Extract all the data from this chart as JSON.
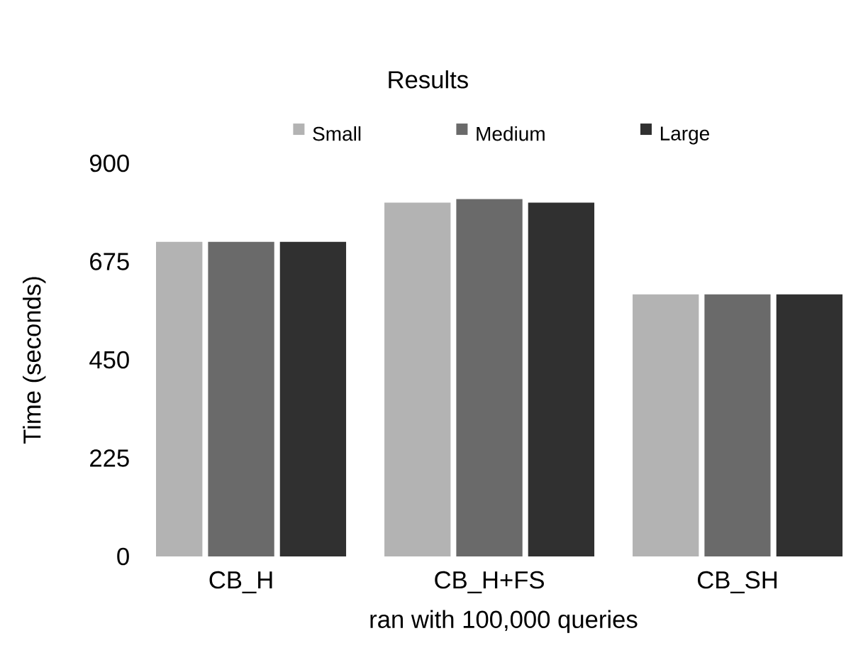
{
  "chart_data": {
    "type": "bar",
    "title": "Results",
    "xlabel": "ran with 100,000 queries",
    "ylabel": "Time (seconds)",
    "categories": [
      "CB_H",
      "CB_H+FS",
      "CB_SH"
    ],
    "series": [
      {
        "name": "Small",
        "color": "#b3b3b3",
        "values": [
          720,
          810,
          600
        ]
      },
      {
        "name": "Medium",
        "color": "#6a6a6a",
        "values": [
          720,
          818,
          600
        ]
      },
      {
        "name": "Large",
        "color": "#303030",
        "values": [
          720,
          810,
          600
        ]
      }
    ],
    "ylim": [
      0,
      900
    ],
    "yticks": [
      0,
      225,
      450,
      675,
      900
    ],
    "grid": false,
    "legend": "top"
  }
}
